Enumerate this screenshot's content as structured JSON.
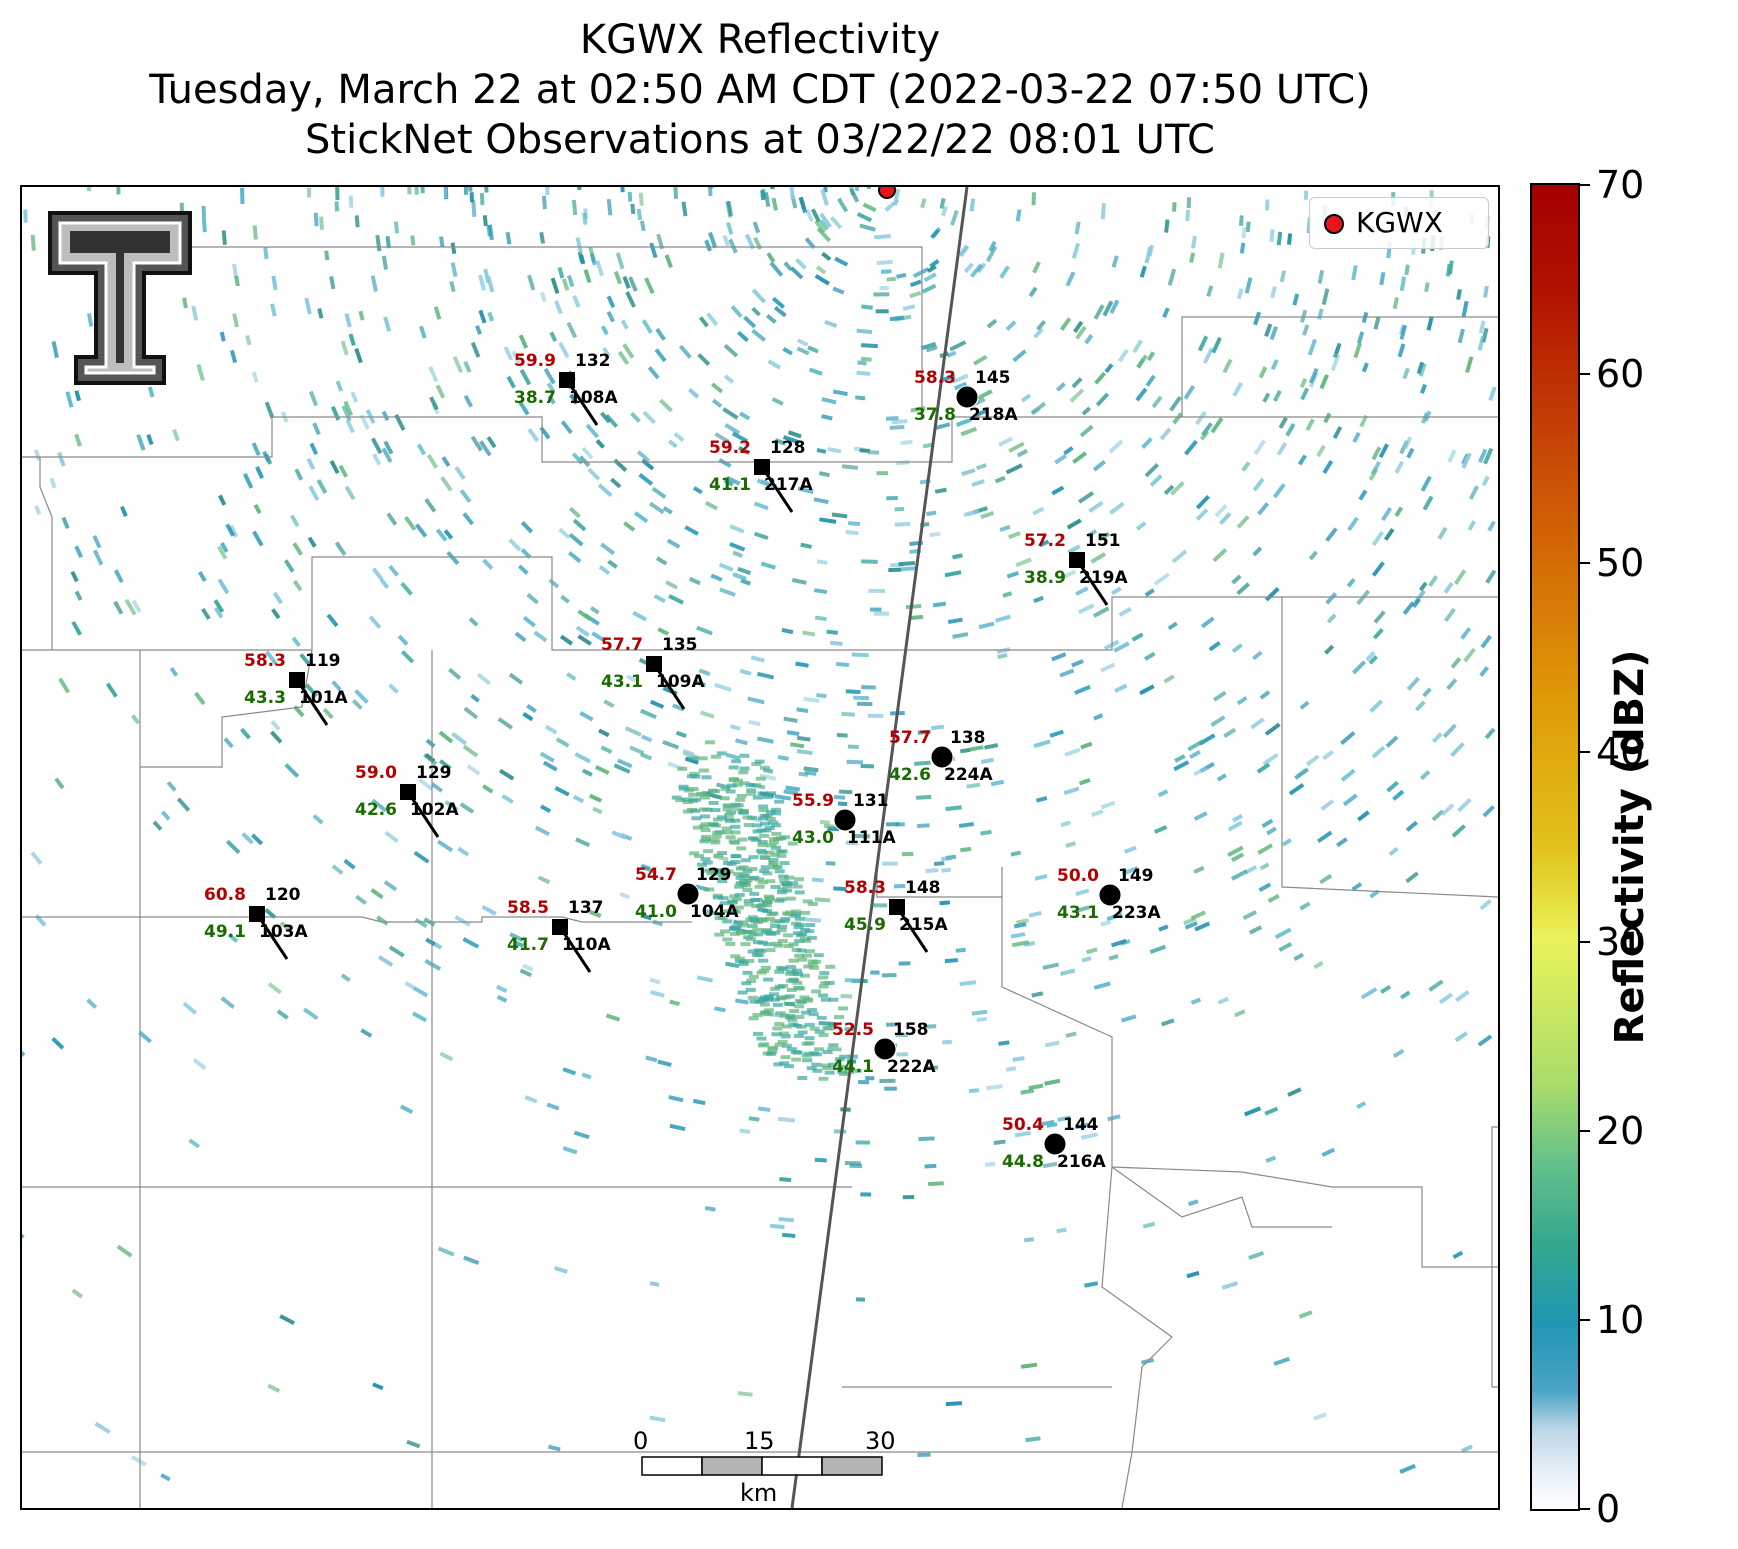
{
  "title": {
    "line1": "KGWX Reflectivity",
    "line2": "Tuesday, March 22 at 02:50 AM CDT (2022-03-22 07:50 UTC)",
    "line3": "StickNet Observations at 03/22/22 08:01 UTC"
  },
  "legend": {
    "label": "KGWX",
    "marker_color": "#e8141b"
  },
  "colorbar": {
    "label": "Reflectivity (dBZ)",
    "ticks": [
      "0",
      "10",
      "20",
      "30",
      "40",
      "50",
      "60",
      "70"
    ],
    "range": [
      0,
      70
    ]
  },
  "scalebar": {
    "ticks": [
      "0",
      "15",
      "30"
    ],
    "unit": "km"
  },
  "stations": [
    {
      "id": "108A",
      "temp": "59.9",
      "dew": "38.7",
      "dir": "132",
      "marker": "square"
    },
    {
      "id": "218A",
      "temp": "58.3",
      "dew": "37.8",
      "dir": "145",
      "marker": "circle"
    },
    {
      "id": "217A",
      "temp": "59.2",
      "dew": "41.1",
      "dir": "128",
      "marker": "square"
    },
    {
      "id": "219A",
      "temp": "57.2",
      "dew": "38.9",
      "dir": "151",
      "marker": "square"
    },
    {
      "id": "101A",
      "temp": "58.3",
      "dew": "43.3",
      "dir": "119",
      "marker": "square"
    },
    {
      "id": "109A",
      "temp": "57.7",
      "dew": "43.1",
      "dir": "135",
      "marker": "square"
    },
    {
      "id": "224A",
      "temp": "57.7",
      "dew": "42.6",
      "dir": "138",
      "marker": "circle"
    },
    {
      "id": "102A",
      "temp": "59.0",
      "dew": "42.6",
      "dir": "129",
      "marker": "square"
    },
    {
      "id": "111A",
      "temp": "55.9",
      "dew": "43.0",
      "dir": "131",
      "marker": "circle"
    },
    {
      "id": "103A",
      "temp": "60.8",
      "dew": "49.1",
      "dir": "120",
      "marker": "square"
    },
    {
      "id": "104A",
      "temp": "54.7",
      "dew": "41.0",
      "dir": "129",
      "marker": "circle"
    },
    {
      "id": "110A",
      "temp": "58.5",
      "dew": "41.7",
      "dir": "137",
      "marker": "square"
    },
    {
      "id": "215A",
      "temp": "58.3",
      "dew": "45.9",
      "dir": "148",
      "marker": "square"
    },
    {
      "id": "223A",
      "temp": "50.0",
      "dew": "43.1",
      "dir": "149",
      "marker": "circle"
    },
    {
      "id": "222A",
      "temp": "52.5",
      "dew": "44.1",
      "dir": "158",
      "marker": "circle"
    },
    {
      "id": "216A",
      "temp": "50.4",
      "dew": "44.8",
      "dir": "144",
      "marker": "circle"
    }
  ]
}
